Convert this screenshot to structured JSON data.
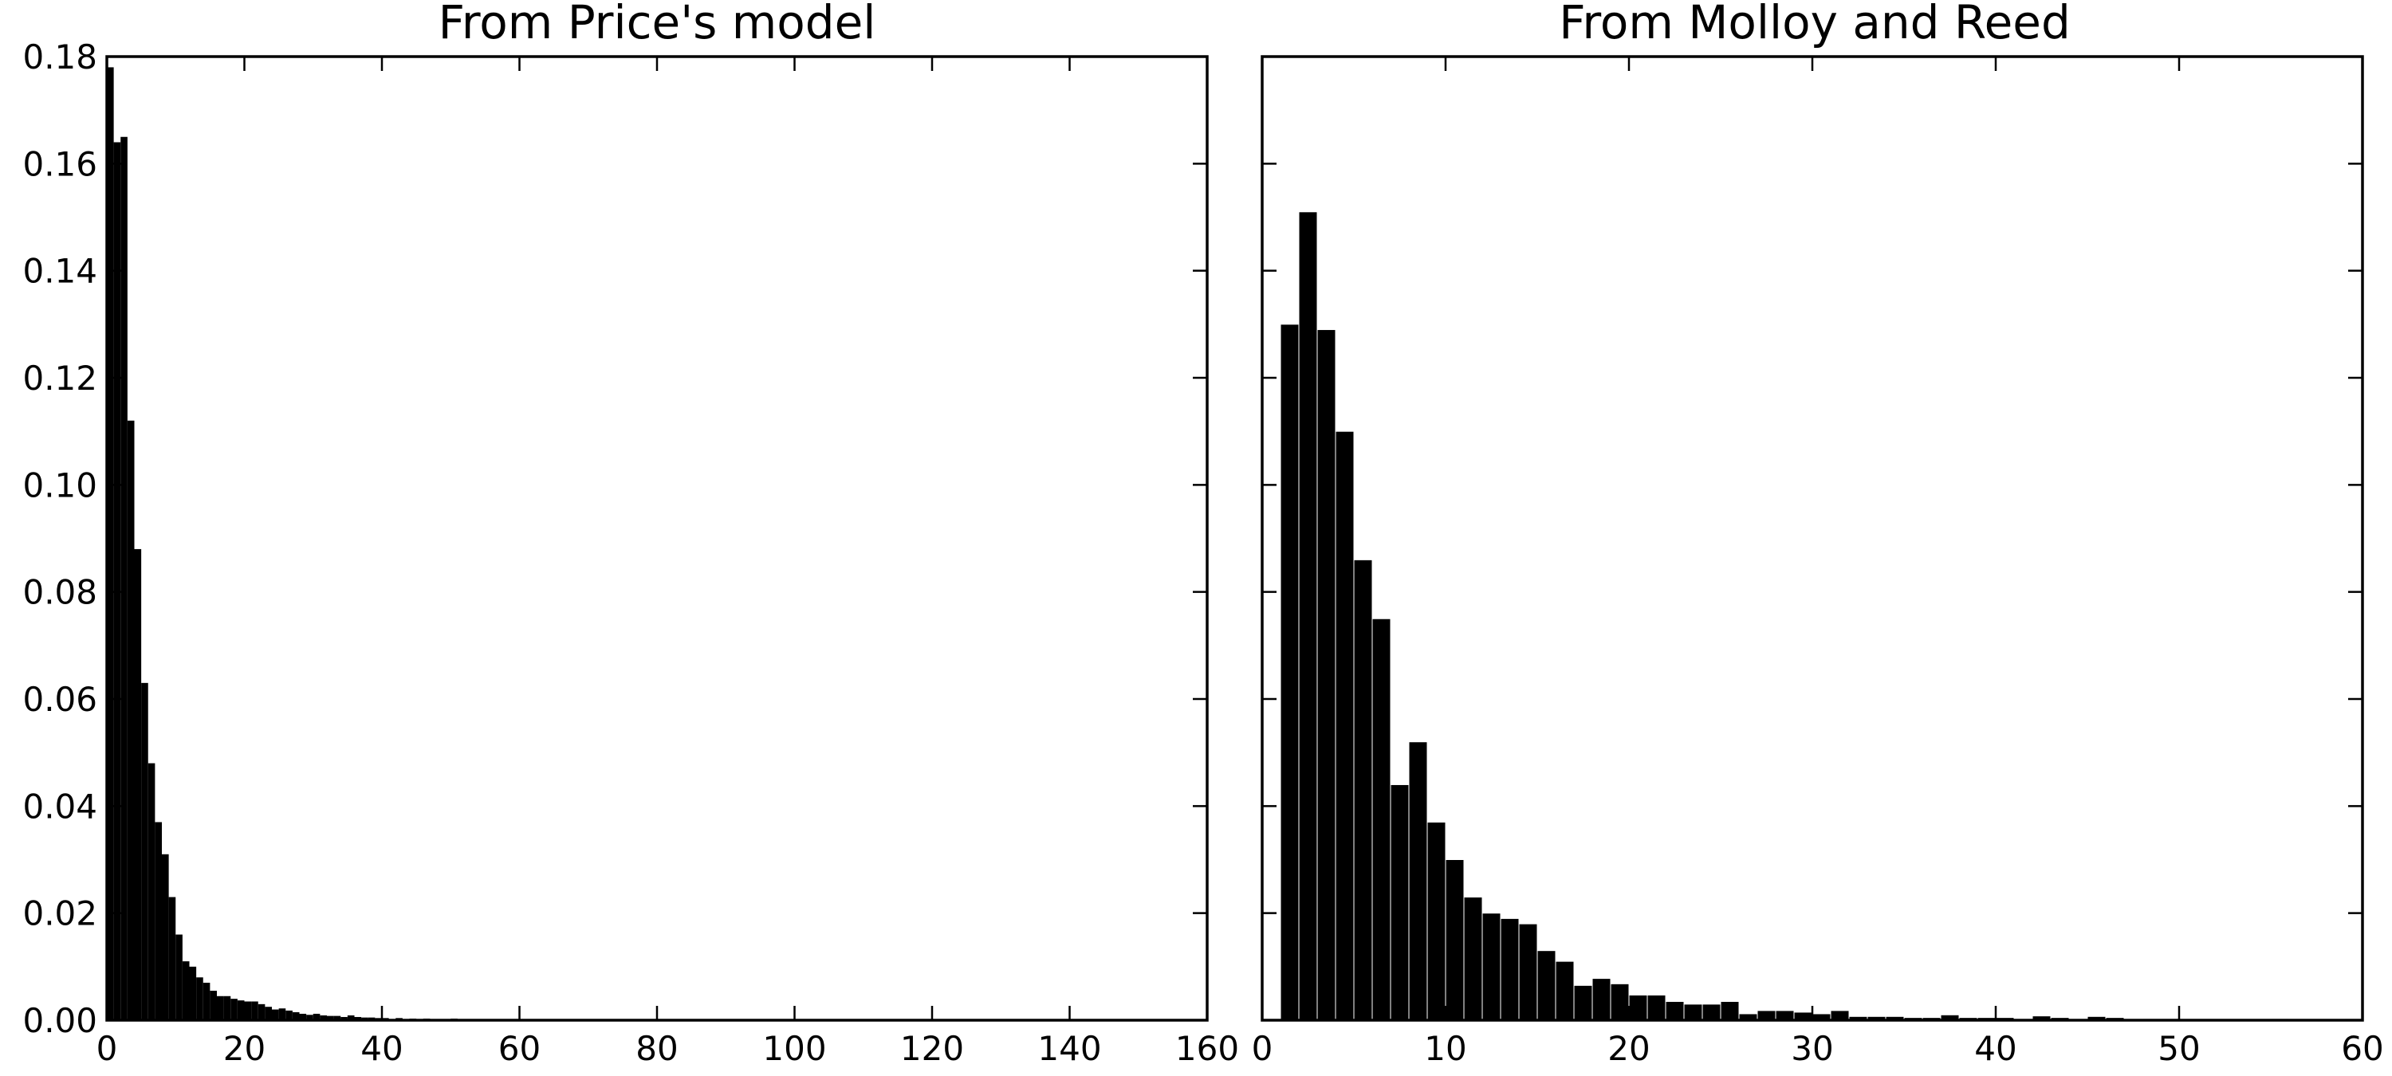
{
  "chart_data": [
    {
      "type": "bar",
      "title": "From Price's model",
      "xlabel": "",
      "ylabel": "",
      "xlim": [
        0,
        160
      ],
      "ylim": [
        0,
        0.18
      ],
      "xticks": [
        "0",
        "20",
        "40",
        "60",
        "80",
        "100",
        "120",
        "140",
        "160"
      ],
      "yticks": [
        "0.00",
        "0.02",
        "0.04",
        "0.06",
        "0.08",
        "0.10",
        "0.12",
        "0.14",
        "0.16",
        "0.18"
      ],
      "show_y_tick_labels": true,
      "grid": false,
      "bar_color": "#000000",
      "bin_width": 1,
      "bins": [
        [
          0,
          0.178
        ],
        [
          1,
          0.164
        ],
        [
          2,
          0.165
        ],
        [
          3,
          0.112
        ],
        [
          4,
          0.088
        ],
        [
          5,
          0.063
        ],
        [
          6,
          0.048
        ],
        [
          7,
          0.037
        ],
        [
          8,
          0.031
        ],
        [
          9,
          0.023
        ],
        [
          10,
          0.016
        ],
        [
          11,
          0.011
        ],
        [
          12,
          0.01
        ],
        [
          13,
          0.008
        ],
        [
          14,
          0.007
        ],
        [
          15,
          0.0055
        ],
        [
          16,
          0.0045
        ],
        [
          17,
          0.0045
        ],
        [
          18,
          0.004
        ],
        [
          19,
          0.0037
        ],
        [
          20,
          0.0035
        ],
        [
          21,
          0.0035
        ],
        [
          22,
          0.003
        ],
        [
          23,
          0.0025
        ],
        [
          24,
          0.002
        ],
        [
          25,
          0.0022
        ],
        [
          26,
          0.0018
        ],
        [
          27,
          0.0015
        ],
        [
          28,
          0.0012
        ],
        [
          29,
          0.001
        ],
        [
          30,
          0.0012
        ],
        [
          31,
          0.0009
        ],
        [
          32,
          0.0008
        ],
        [
          33,
          0.0008
        ],
        [
          34,
          0.0006
        ],
        [
          35,
          0.0009
        ],
        [
          36,
          0.0006
        ],
        [
          37,
          0.0005
        ],
        [
          38,
          0.0005
        ],
        [
          39,
          0.0004
        ],
        [
          40,
          0.0004
        ],
        [
          42,
          0.0004
        ],
        [
          44,
          0.0003
        ],
        [
          46,
          0.0003
        ],
        [
          48,
          0.0002
        ],
        [
          50,
          0.0003
        ],
        [
          52,
          0.0002
        ],
        [
          54,
          0.0002
        ],
        [
          56,
          0.0002
        ],
        [
          58,
          0.0002
        ],
        [
          60,
          0.0002
        ],
        [
          64,
          0.0002
        ],
        [
          66,
          0.0002
        ],
        [
          70,
          0.0002
        ],
        [
          74,
          0.0002
        ],
        [
          78,
          0.0002
        ],
        [
          82,
          0.0002
        ],
        [
          86,
          0.0002
        ],
        [
          96,
          0.0002
        ],
        [
          103,
          0.0002
        ],
        [
          120,
          0.0002
        ],
        [
          143,
          0.0002
        ]
      ]
    },
    {
      "type": "bar",
      "title": "From Molloy and Reed",
      "xlabel": "",
      "ylabel": "",
      "xlim": [
        0,
        60
      ],
      "ylim": [
        0,
        0.18
      ],
      "xticks": [
        "0",
        "10",
        "20",
        "30",
        "40",
        "50",
        "60"
      ],
      "yticks": [
        "0.00",
        "0.02",
        "0.04",
        "0.06",
        "0.08",
        "0.10",
        "0.12",
        "0.14",
        "0.16",
        "0.18"
      ],
      "show_y_tick_labels": false,
      "grid": false,
      "bar_color": "#000000",
      "bin_width": 1,
      "bins": [
        [
          1,
          0.13
        ],
        [
          2,
          0.151
        ],
        [
          3,
          0.129
        ],
        [
          4,
          0.11
        ],
        [
          5,
          0.086
        ],
        [
          6,
          0.075
        ],
        [
          7,
          0.044
        ],
        [
          8,
          0.052
        ],
        [
          9,
          0.037
        ],
        [
          10,
          0.03
        ],
        [
          11,
          0.023
        ],
        [
          12,
          0.02
        ],
        [
          13,
          0.019
        ],
        [
          14,
          0.018
        ],
        [
          15,
          0.013
        ],
        [
          16,
          0.011
        ],
        [
          17,
          0.0065
        ],
        [
          18,
          0.0078
        ],
        [
          19,
          0.0068
        ],
        [
          20,
          0.0047
        ],
        [
          21,
          0.0047
        ],
        [
          22,
          0.0035
        ],
        [
          23,
          0.003
        ],
        [
          24,
          0.003
        ],
        [
          25,
          0.0035
        ],
        [
          26,
          0.0012
        ],
        [
          27,
          0.0018
        ],
        [
          28,
          0.0018
        ],
        [
          29,
          0.0015
        ],
        [
          30,
          0.0012
        ],
        [
          31,
          0.0018
        ],
        [
          32,
          0.0007
        ],
        [
          33,
          0.0007
        ],
        [
          34,
          0.0007
        ],
        [
          35,
          0.0005
        ],
        [
          36,
          0.0005
        ],
        [
          37,
          0.001
        ],
        [
          38,
          0.0005
        ],
        [
          39,
          0.0005
        ],
        [
          40,
          0.0005
        ],
        [
          42,
          0.0008
        ],
        [
          43,
          0.0005
        ],
        [
          45,
          0.0007
        ],
        [
          46,
          0.0005
        ],
        [
          48,
          0.0003
        ],
        [
          49,
          0.0003
        ],
        [
          55,
          0.0003
        ],
        [
          59,
          0.0003
        ]
      ]
    }
  ]
}
